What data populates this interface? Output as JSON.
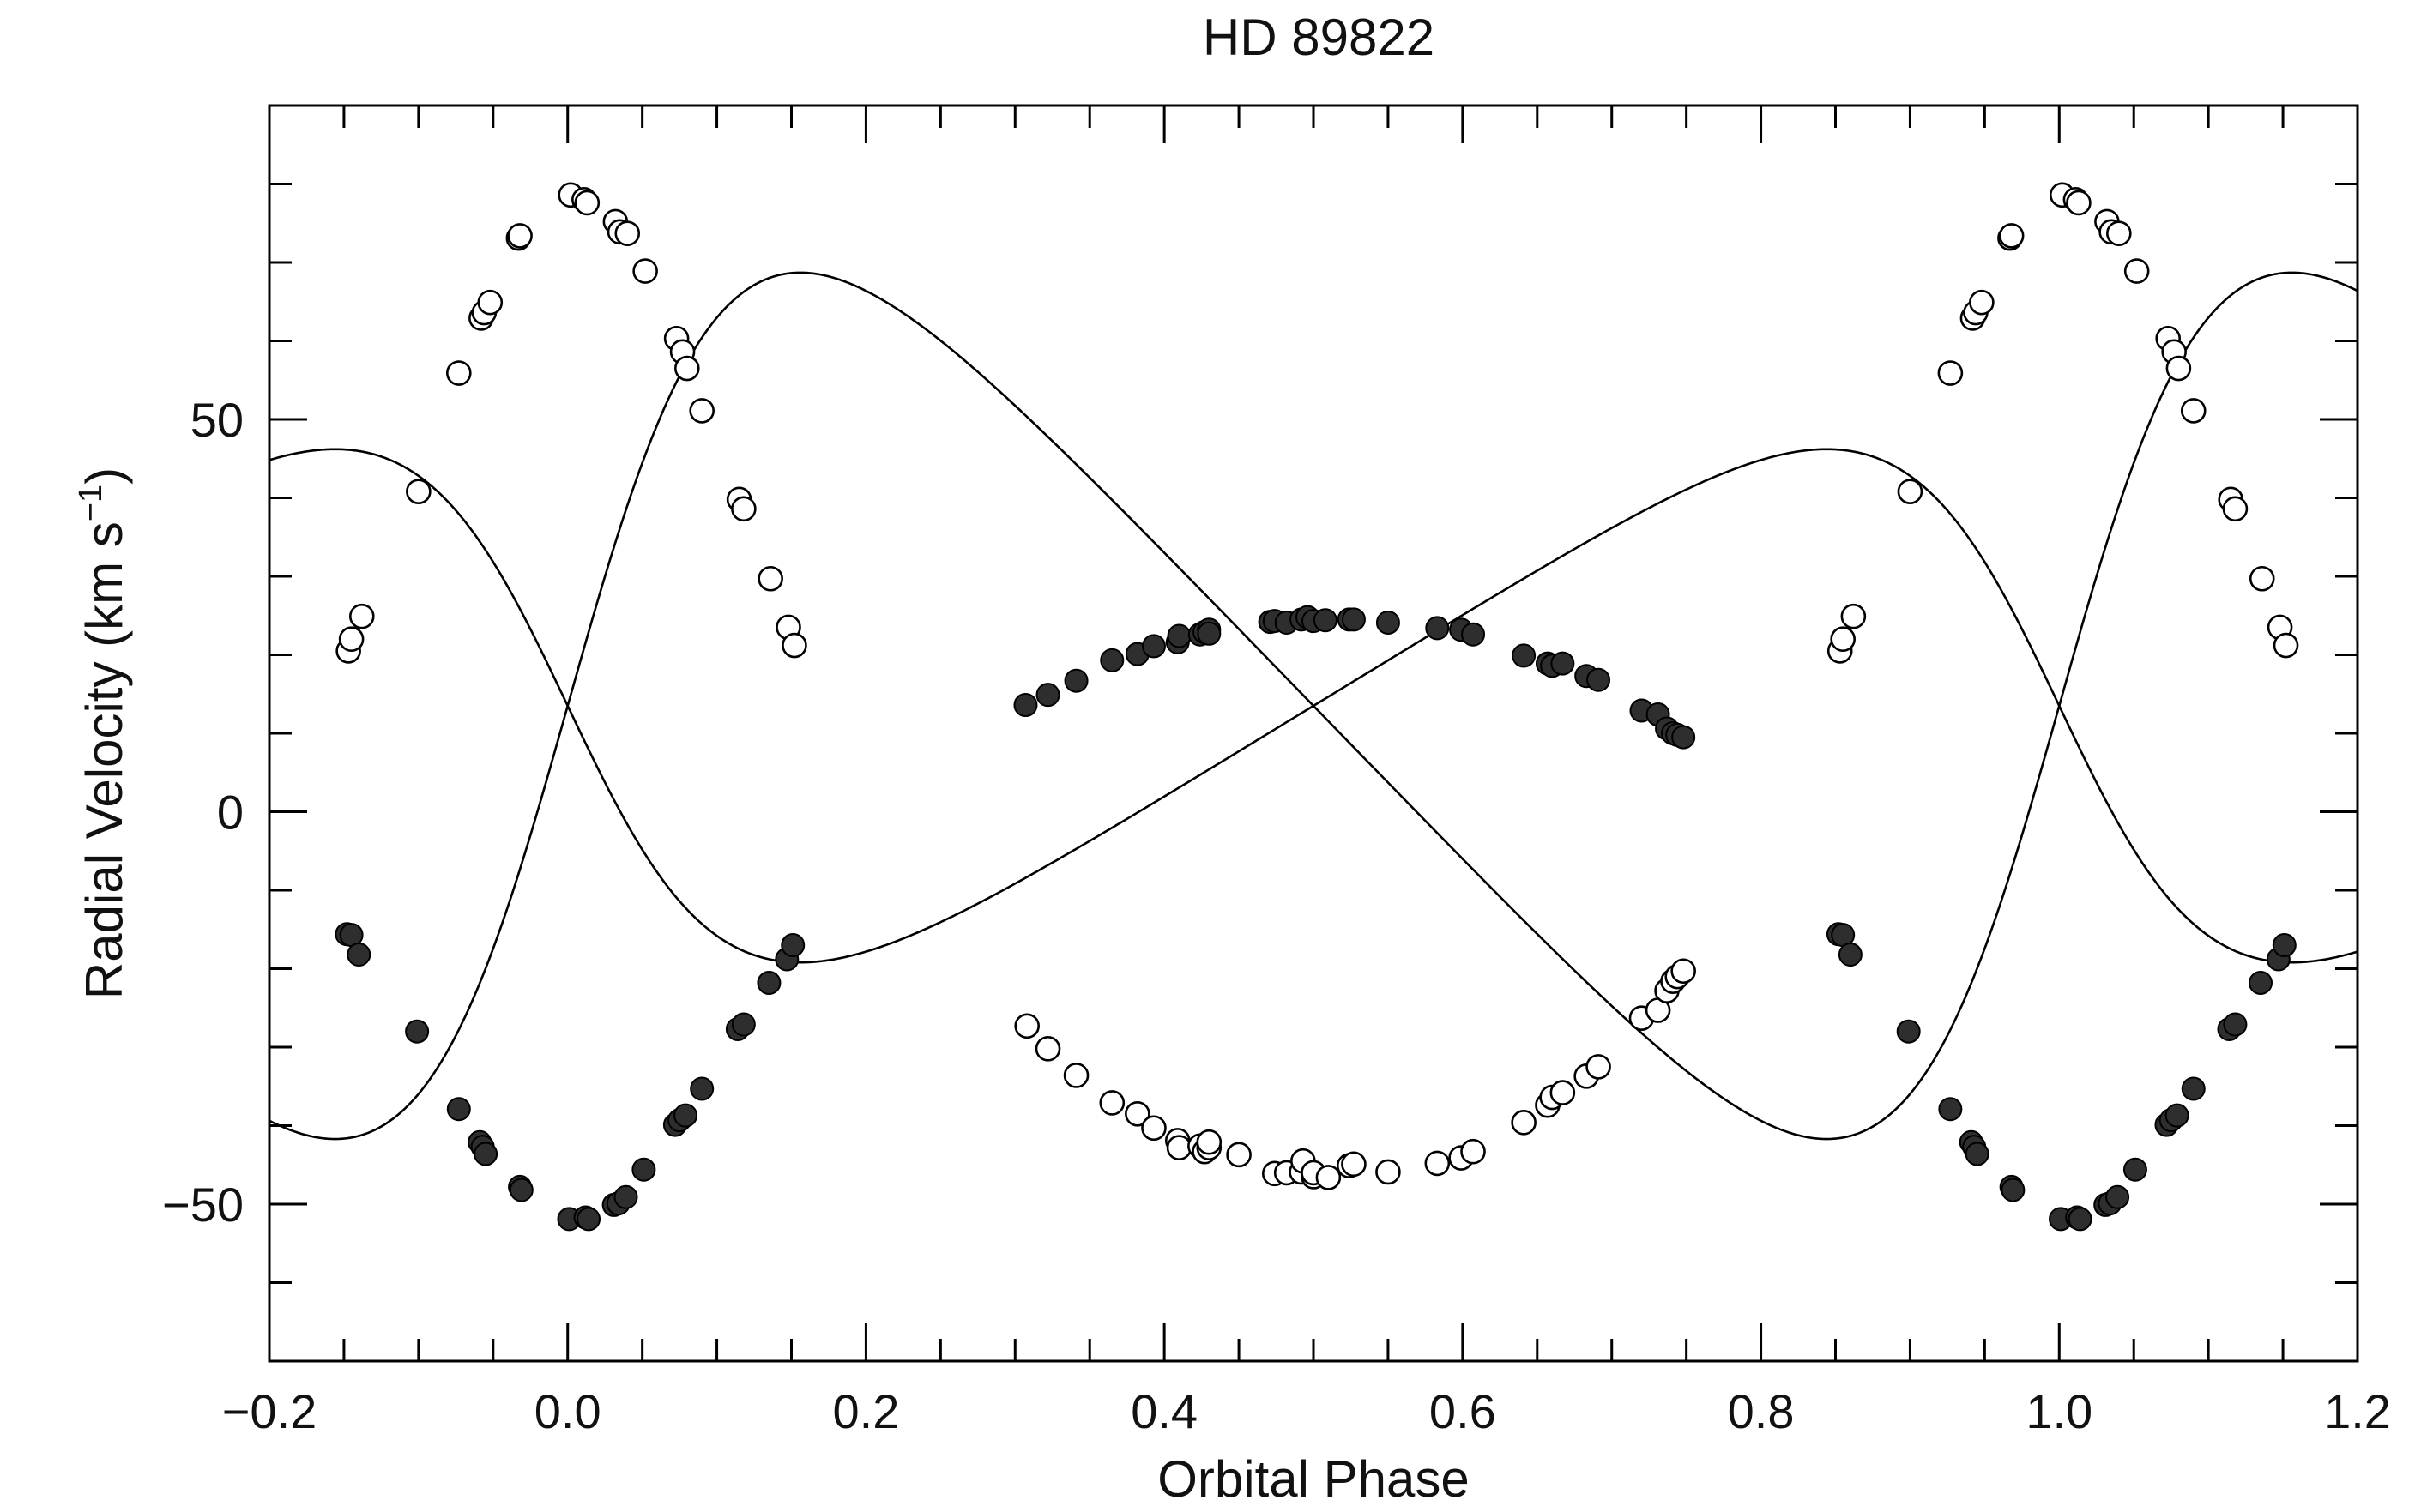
{
  "chart_data": {
    "type": "scatter",
    "title": "HD 89822",
    "xlabel": "Orbital Phase",
    "ylabel_main": "Radial Velocity (km s",
    "ylabel_exp": "−1",
    "ylabel_close": ")",
    "xlim": [
      -0.2,
      1.2
    ],
    "ylim": [
      -70,
      90
    ],
    "x_ticks": [
      -0.2,
      0.0,
      0.2,
      0.4,
      0.6,
      0.8,
      1.0,
      1.2
    ],
    "x_tick_labels": [
      "−0.2",
      "0.0",
      "0.2",
      "0.4",
      "0.6",
      "0.8",
      "1.0",
      "1.2"
    ],
    "y_ticks": [
      -50,
      0,
      50
    ],
    "y_tick_labels": [
      "−50",
      "0",
      "50"
    ],
    "grid": false,
    "legend": "none",
    "model": {
      "gamma": 13.5,
      "K_primary": 32.7,
      "K_secondary": 55.2,
      "eccentricity": 0.3,
      "omega_deg": 90
    },
    "series": [
      {
        "marker": "open-circle",
        "color": "#000000",
        "curve": "secondary",
        "points": [
          [
            -0.147,
            20.5
          ],
          [
            -0.145,
            22.0
          ],
          [
            -0.138,
            24.9
          ],
          [
            -0.1,
            40.8
          ],
          [
            -0.073,
            55.9
          ],
          [
            -0.058,
            62.9
          ],
          [
            -0.056,
            63.6
          ],
          [
            -0.052,
            64.9
          ],
          [
            -0.033,
            73.1
          ],
          [
            -0.032,
            73.4
          ],
          [
            0.002,
            78.6
          ],
          [
            0.011,
            78.0
          ],
          [
            0.013,
            77.6
          ],
          [
            0.032,
            75.2
          ],
          [
            0.035,
            73.9
          ],
          [
            0.04,
            73.7
          ],
          [
            0.052,
            68.9
          ],
          [
            0.073,
            60.3
          ],
          [
            0.077,
            58.6
          ],
          [
            0.08,
            56.5
          ],
          [
            0.09,
            51.1
          ],
          [
            0.115,
            39.8
          ],
          [
            0.118,
            38.6
          ],
          [
            0.136,
            29.7
          ],
          [
            0.148,
            23.5
          ],
          [
            0.152,
            21.2
          ],
          [
            0.308,
            -27.3
          ],
          [
            0.322,
            -30.2
          ],
          [
            0.341,
            -33.6
          ],
          [
            0.365,
            -37.1
          ],
          [
            0.382,
            -38.5
          ],
          [
            0.393,
            -40.3
          ],
          [
            0.409,
            -41.9
          ],
          [
            0.41,
            -42.8
          ],
          [
            0.424,
            -42.6
          ],
          [
            0.427,
            -43.3
          ],
          [
            0.43,
            -42.8
          ],
          [
            0.43,
            -42.1
          ],
          [
            0.45,
            -43.7
          ],
          [
            0.474,
            -46.1
          ],
          [
            0.482,
            -46.0
          ],
          [
            0.492,
            -45.9
          ],
          [
            0.493,
            -44.5
          ],
          [
            0.5,
            -46.5
          ],
          [
            0.5,
            -46.0
          ],
          [
            0.51,
            -46.6
          ],
          [
            0.524,
            -45.1
          ],
          [
            0.527,
            -44.9
          ],
          [
            0.55,
            -45.9
          ],
          [
            0.583,
            -44.8
          ],
          [
            0.599,
            -44.1
          ],
          [
            0.607,
            -43.3
          ],
          [
            0.641,
            -39.6
          ],
          [
            0.657,
            -37.4
          ],
          [
            0.66,
            -36.4
          ],
          [
            0.667,
            -35.8
          ],
          [
            0.683,
            -33.7
          ],
          [
            0.691,
            -32.5
          ],
          [
            0.72,
            -26.3
          ],
          [
            0.731,
            -25.3
          ],
          [
            0.737,
            -22.8
          ],
          [
            0.741,
            -21.6
          ],
          [
            0.744,
            -21.0
          ],
          [
            0.748,
            -20.3
          ]
        ]
      },
      {
        "marker": "filled-circle",
        "color": "#2e2e2e",
        "curve": "primary",
        "points": [
          [
            -0.148,
            -15.6
          ],
          [
            -0.145,
            -15.7
          ],
          [
            -0.14,
            -18.2
          ],
          [
            -0.101,
            -28.0
          ],
          [
            -0.073,
            -37.9
          ],
          [
            -0.059,
            -42.1
          ],
          [
            -0.057,
            -42.7
          ],
          [
            -0.055,
            -43.6
          ],
          [
            -0.032,
            -47.8
          ],
          [
            -0.031,
            -48.2
          ],
          [
            0.001,
            -51.9
          ],
          [
            0.012,
            -51.7
          ],
          [
            0.014,
            -51.9
          ],
          [
            0.031,
            -50.1
          ],
          [
            0.034,
            -49.9
          ],
          [
            0.039,
            -49.1
          ],
          [
            0.051,
            -45.6
          ],
          [
            0.072,
            -39.9
          ],
          [
            0.075,
            -39.3
          ],
          [
            0.079,
            -38.7
          ],
          [
            0.09,
            -35.3
          ],
          [
            0.114,
            -27.7
          ],
          [
            0.118,
            -27.1
          ],
          [
            0.135,
            -21.8
          ],
          [
            0.147,
            -18.8
          ],
          [
            0.151,
            -17.0
          ],
          [
            0.307,
            13.6
          ],
          [
            0.322,
            14.9
          ],
          [
            0.341,
            16.7
          ],
          [
            0.365,
            19.3
          ],
          [
            0.382,
            20.1
          ],
          [
            0.393,
            21.1
          ],
          [
            0.409,
            21.6
          ],
          [
            0.41,
            22.4
          ],
          [
            0.424,
            22.6
          ],
          [
            0.427,
            22.9
          ],
          [
            0.43,
            23.2
          ],
          [
            0.43,
            22.7
          ],
          [
            0.471,
            24.2
          ],
          [
            0.474,
            24.3
          ],
          [
            0.482,
            24.1
          ],
          [
            0.492,
            24.5
          ],
          [
            0.496,
            24.8
          ],
          [
            0.5,
            24.3
          ],
          [
            0.508,
            24.4
          ],
          [
            0.524,
            24.5
          ],
          [
            0.527,
            24.5
          ],
          [
            0.55,
            24.1
          ],
          [
            0.583,
            23.4
          ],
          [
            0.599,
            23.2
          ],
          [
            0.607,
            22.6
          ],
          [
            0.641,
            19.9
          ],
          [
            0.657,
            18.9
          ],
          [
            0.66,
            18.6
          ],
          [
            0.667,
            18.9
          ],
          [
            0.683,
            17.3
          ],
          [
            0.691,
            16.8
          ],
          [
            0.72,
            12.9
          ],
          [
            0.731,
            12.4
          ],
          [
            0.737,
            10.6
          ],
          [
            0.741,
            10.0
          ],
          [
            0.744,
            9.8
          ],
          [
            0.748,
            9.5
          ]
        ]
      }
    ]
  }
}
